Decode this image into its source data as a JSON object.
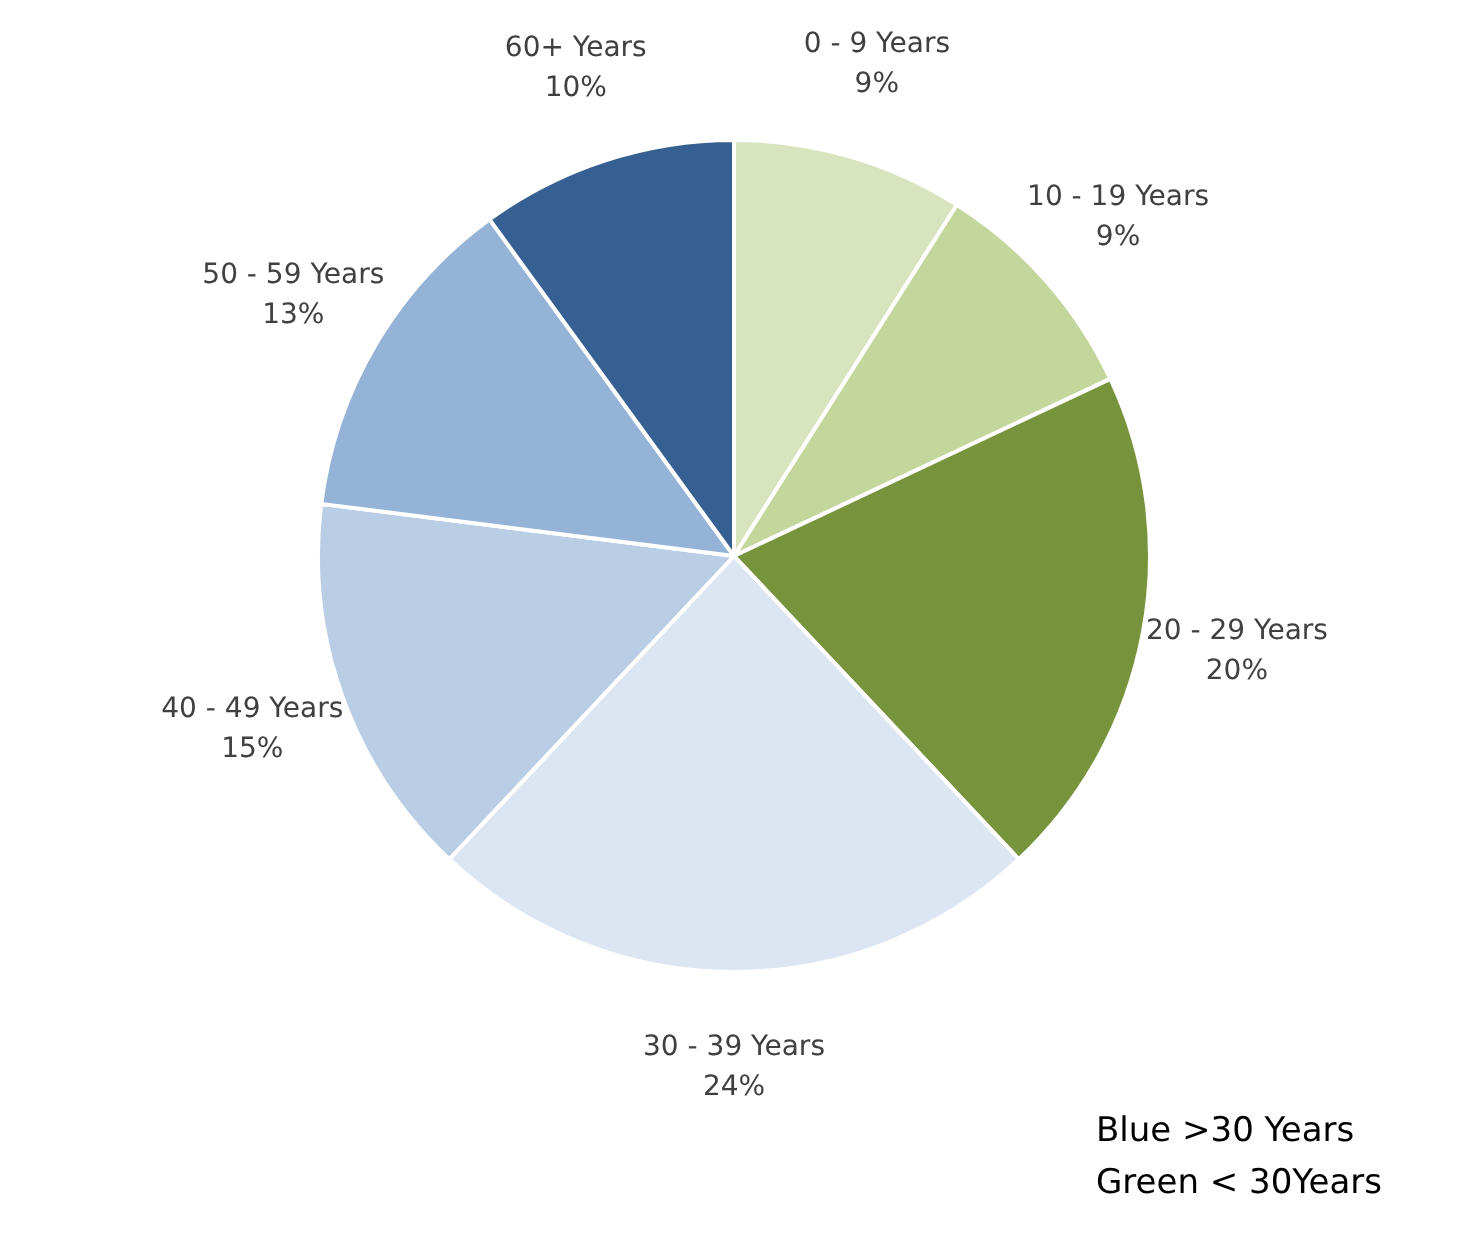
{
  "chart_data": {
    "type": "pie",
    "categories": [
      "0 - 9 Years",
      "10 - 19 Years",
      "20 - 29 Years",
      "30 - 39 Years",
      "40 - 49 Years",
      "50 - 59 Years",
      "60+ Years"
    ],
    "values": [
      9,
      9,
      20,
      24,
      15,
      13,
      10
    ],
    "value_labels": [
      "9%",
      "9%",
      "20%",
      "24%",
      "15%",
      "13%",
      "10%"
    ],
    "colors": [
      "#d7e4bd",
      "#c3d69b",
      "#77933c",
      "#dce6f2",
      "#b9cde5",
      "#95b3d7",
      "#376092"
    ],
    "legend": false,
    "annotations": [
      "Blue >30 Years",
      "Green < 30Years"
    ]
  }
}
